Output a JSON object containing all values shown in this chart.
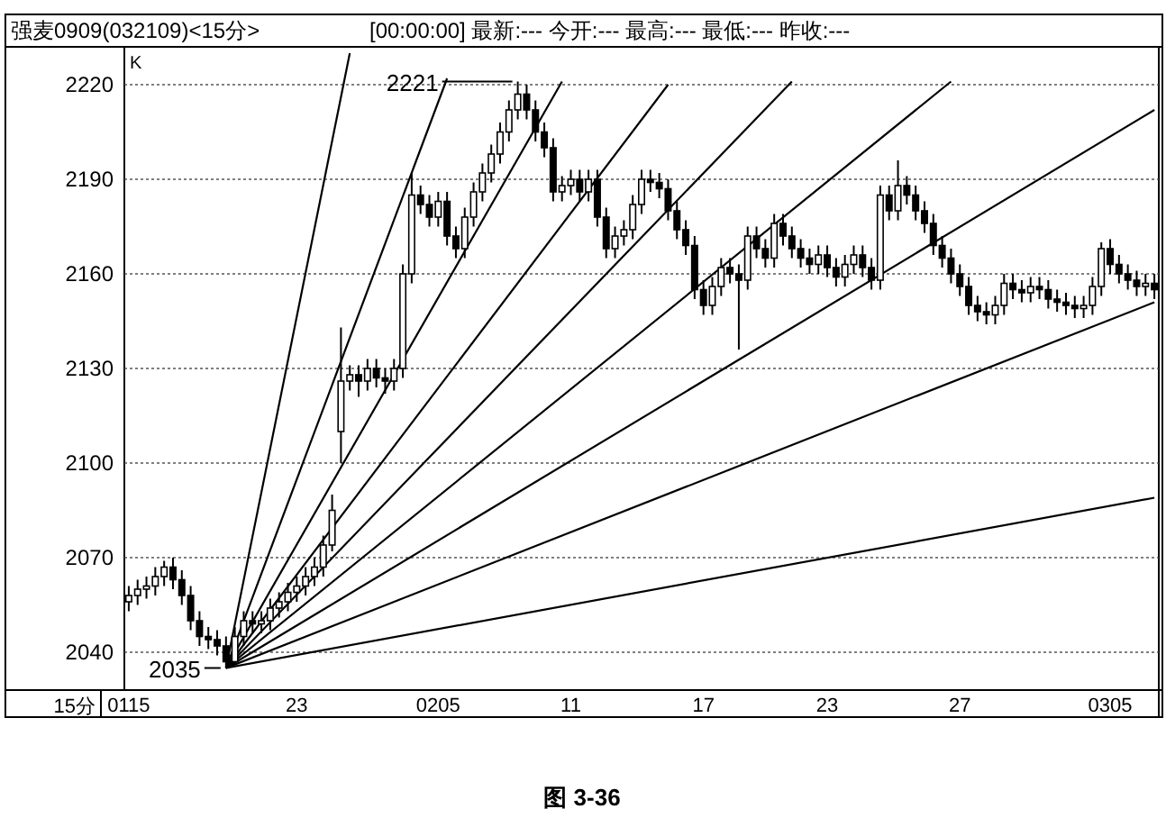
{
  "chart_data": {
    "type": "candlestick",
    "title": "强麦0909(032109)<15分>",
    "subtitle": "[00:00:00] 最新:--- 今开:--- 最高:--- 最低:--- 昨收:---",
    "xlabel": "15分",
    "ylabel": "K",
    "categories": [
      "0115",
      null,
      null,
      null,
      null,
      null,
      null,
      null,
      null,
      null,
      null,
      null,
      null,
      null,
      null,
      null,
      null,
      null,
      null,
      "23",
      null,
      null,
      null,
      null,
      null,
      null,
      null,
      null,
      null,
      null,
      null,
      null,
      null,
      null,
      null,
      "0205",
      null,
      null,
      null,
      null,
      null,
      null,
      null,
      null,
      null,
      null,
      null,
      null,
      null,
      null,
      "11",
      null,
      null,
      null,
      null,
      null,
      null,
      null,
      null,
      null,
      null,
      null,
      null,
      null,
      null,
      "17",
      null,
      null,
      null,
      null,
      null,
      null,
      null,
      null,
      null,
      null,
      null,
      null,
      null,
      "23",
      null,
      null,
      null,
      null,
      null,
      null,
      null,
      null,
      null,
      null,
      null,
      null,
      null,
      null,
      "27",
      null,
      null,
      null,
      null,
      null,
      null,
      null,
      null,
      null,
      null,
      null,
      null,
      null,
      null,
      null,
      null,
      "0305",
      null,
      null,
      null,
      null,
      null
    ],
    "ylim": [
      2028,
      2232
    ],
    "yticks": [
      2040,
      2070,
      2100,
      2130,
      2160,
      2190,
      2220
    ],
    "grid": "y",
    "ohlc": [
      [
        2056,
        2061,
        2053,
        2058
      ],
      [
        2058,
        2063,
        2055,
        2060
      ],
      [
        2060,
        2064,
        2057,
        2061
      ],
      [
        2061,
        2067,
        2058,
        2064
      ],
      [
        2064,
        2069,
        2061,
        2067
      ],
      [
        2067,
        2070,
        2060,
        2063
      ],
      [
        2063,
        2066,
        2055,
        2058
      ],
      [
        2058,
        2061,
        2047,
        2050
      ],
      [
        2050,
        2053,
        2042,
        2045
      ],
      [
        2045,
        2048,
        2041,
        2044
      ],
      [
        2044,
        2047,
        2039,
        2042
      ],
      [
        2042,
        2045,
        2035,
        2037
      ],
      [
        2037,
        2048,
        2036,
        2045
      ],
      [
        2045,
        2053,
        2042,
        2050
      ],
      [
        2050,
        2053,
        2046,
        2049
      ],
      [
        2049,
        2053,
        2046,
        2050
      ],
      [
        2050,
        2057,
        2047,
        2054
      ],
      [
        2054,
        2059,
        2051,
        2056
      ],
      [
        2056,
        2062,
        2053,
        2059
      ],
      [
        2059,
        2064,
        2056,
        2061
      ],
      [
        2061,
        2067,
        2058,
        2064
      ],
      [
        2064,
        2070,
        2061,
        2067
      ],
      [
        2067,
        2077,
        2064,
        2074
      ],
      [
        2074,
        2090,
        2072,
        2085
      ],
      [
        2110,
        2143,
        2100,
        2126
      ],
      [
        2126,
        2131,
        2123,
        2128
      ],
      [
        2128,
        2131,
        2121,
        2126
      ],
      [
        2126,
        2133,
        2123,
        2130
      ],
      [
        2130,
        2133,
        2124,
        2127
      ],
      [
        2127,
        2130,
        2122,
        2126
      ],
      [
        2126,
        2133,
        2123,
        2130
      ],
      [
        2130,
        2163,
        2127,
        2160
      ],
      [
        2160,
        2192,
        2157,
        2185
      ],
      [
        2185,
        2188,
        2179,
        2182
      ],
      [
        2182,
        2185,
        2175,
        2178
      ],
      [
        2178,
        2186,
        2175,
        2183
      ],
      [
        2183,
        2186,
        2169,
        2172
      ],
      [
        2172,
        2175,
        2165,
        2168
      ],
      [
        2168,
        2181,
        2165,
        2178
      ],
      [
        2178,
        2189,
        2175,
        2186
      ],
      [
        2186,
        2195,
        2183,
        2192
      ],
      [
        2192,
        2201,
        2189,
        2198
      ],
      [
        2198,
        2208,
        2195,
        2205
      ],
      [
        2205,
        2215,
        2202,
        2212
      ],
      [
        2212,
        2221,
        2209,
        2217
      ],
      [
        2217,
        2220,
        2209,
        2212
      ],
      [
        2212,
        2215,
        2202,
        2205
      ],
      [
        2205,
        2208,
        2197,
        2200
      ],
      [
        2200,
        2203,
        2183,
        2186
      ],
      [
        2186,
        2191,
        2183,
        2188
      ],
      [
        2188,
        2193,
        2185,
        2190
      ],
      [
        2190,
        2193,
        2183,
        2186
      ],
      [
        2186,
        2193,
        2183,
        2190
      ],
      [
        2190,
        2193,
        2175,
        2178
      ],
      [
        2178,
        2181,
        2165,
        2168
      ],
      [
        2168,
        2175,
        2165,
        2172
      ],
      [
        2172,
        2177,
        2169,
        2174
      ],
      [
        2174,
        2185,
        2171,
        2182
      ],
      [
        2182,
        2193,
        2179,
        2190
      ],
      [
        2190,
        2193,
        2186,
        2189
      ],
      [
        2189,
        2192,
        2184,
        2187
      ],
      [
        2187,
        2190,
        2177,
        2180
      ],
      [
        2180,
        2183,
        2171,
        2174
      ],
      [
        2174,
        2177,
        2166,
        2169
      ],
      [
        2169,
        2172,
        2152,
        2155
      ],
      [
        2155,
        2158,
        2147,
        2150
      ],
      [
        2150,
        2159,
        2147,
        2156
      ],
      [
        2156,
        2165,
        2153,
        2162
      ],
      [
        2162,
        2165,
        2157,
        2160
      ],
      [
        2160,
        2163,
        2136,
        2158
      ],
      [
        2158,
        2175,
        2155,
        2172
      ],
      [
        2172,
        2175,
        2165,
        2168
      ],
      [
        2168,
        2171,
        2162,
        2165
      ],
      [
        2165,
        2179,
        2162,
        2176
      ],
      [
        2176,
        2179,
        2169,
        2172
      ],
      [
        2172,
        2175,
        2165,
        2168
      ],
      [
        2168,
        2171,
        2162,
        2165
      ],
      [
        2165,
        2168,
        2160,
        2163
      ],
      [
        2163,
        2169,
        2160,
        2166
      ],
      [
        2166,
        2169,
        2159,
        2162
      ],
      [
        2162,
        2165,
        2156,
        2159
      ],
      [
        2159,
        2166,
        2156,
        2163
      ],
      [
        2163,
        2169,
        2160,
        2166
      ],
      [
        2166,
        2169,
        2159,
        2162
      ],
      [
        2162,
        2165,
        2155,
        2158
      ],
      [
        2158,
        2188,
        2155,
        2185
      ],
      [
        2185,
        2188,
        2177,
        2180
      ],
      [
        2180,
        2196,
        2177,
        2188
      ],
      [
        2188,
        2191,
        2182,
        2185
      ],
      [
        2185,
        2188,
        2177,
        2180
      ],
      [
        2180,
        2183,
        2173,
        2176
      ],
      [
        2176,
        2179,
        2166,
        2169
      ],
      [
        2169,
        2172,
        2162,
        2165
      ],
      [
        2165,
        2168,
        2157,
        2160
      ],
      [
        2160,
        2163,
        2153,
        2156
      ],
      [
        2156,
        2159,
        2147,
        2150
      ],
      [
        2150,
        2153,
        2145,
        2148
      ],
      [
        2148,
        2151,
        2144,
        2147
      ],
      [
        2147,
        2153,
        2144,
        2150
      ],
      [
        2150,
        2160,
        2147,
        2157
      ],
      [
        2157,
        2160,
        2152,
        2155
      ],
      [
        2155,
        2158,
        2151,
        2154
      ],
      [
        2154,
        2159,
        2151,
        2156
      ],
      [
        2156,
        2159,
        2152,
        2155
      ],
      [
        2155,
        2158,
        2149,
        2152
      ],
      [
        2152,
        2155,
        2148,
        2151
      ],
      [
        2151,
        2154,
        2147,
        2150
      ],
      [
        2150,
        2153,
        2146,
        2149
      ],
      [
        2149,
        2153,
        2146,
        2150
      ],
      [
        2150,
        2159,
        2147,
        2156
      ],
      [
        2156,
        2170,
        2153,
        2168
      ],
      [
        2168,
        2171,
        2160,
        2163
      ],
      [
        2163,
        2166,
        2157,
        2160
      ],
      [
        2160,
        2163,
        2155,
        2158
      ],
      [
        2158,
        2161,
        2153,
        2156
      ],
      [
        2156,
        2160,
        2153,
        2157
      ],
      [
        2157,
        2160,
        2152,
        2155
      ]
    ],
    "series": [
      {
        "type": "line",
        "color": "#000000",
        "values": [
          null,
          null,
          null,
          null,
          null,
          null,
          null,
          null,
          null,
          null,
          null,
          2035,
          null,
          null,
          null,
          null,
          null,
          null,
          null,
          null,
          null,
          null,
          null,
          null,
          null,
          2230,
          null,
          null,
          null,
          null,
          null,
          null,
          null,
          null,
          null,
          null,
          null,
          null,
          null,
          null,
          null,
          null,
          null,
          null,
          null,
          null,
          null,
          null,
          null,
          null,
          null,
          null,
          null,
          null,
          null,
          null,
          null,
          null,
          null,
          null,
          null,
          null,
          null,
          null,
          null,
          null,
          null,
          null,
          null,
          null,
          null,
          null,
          null,
          null,
          null,
          null,
          null,
          null,
          null,
          null,
          null,
          null,
          null,
          null,
          null,
          null,
          null,
          null,
          null,
          null,
          null,
          null,
          null,
          null,
          null,
          null,
          null,
          null,
          null,
          null,
          null,
          null,
          null,
          null,
          null,
          null,
          null,
          null,
          null,
          null,
          null,
          null,
          null,
          null,
          null,
          null,
          null
        ]
      },
      {
        "type": "line",
        "color": "#000000",
        "values": [
          null,
          null,
          null,
          null,
          null,
          null,
          null,
          null,
          null,
          null,
          null,
          2035,
          null,
          null,
          null,
          null,
          null,
          null,
          null,
          null,
          null,
          null,
          null,
          null,
          null,
          null,
          null,
          null,
          null,
          null,
          null,
          null,
          null,
          null,
          null,
          null,
          2222,
          null,
          null,
          null,
          null,
          null,
          null,
          null,
          null,
          null,
          null,
          null,
          null,
          null,
          null,
          null,
          null,
          null,
          null,
          null,
          null,
          null,
          null,
          null,
          null,
          null,
          null,
          null,
          null,
          null,
          null,
          null,
          null,
          null,
          null,
          null,
          null,
          null,
          null,
          null,
          null,
          null,
          null,
          null,
          null,
          null,
          null,
          null,
          null,
          null,
          null,
          null,
          null,
          null,
          null,
          null,
          null,
          null,
          null,
          null,
          null,
          null,
          null,
          null,
          null,
          null,
          null,
          null,
          null,
          null,
          null,
          null,
          null,
          null,
          null,
          null,
          null,
          null,
          null,
          null,
          null
        ]
      },
      {
        "type": "line",
        "color": "#000000",
        "values": [
          null,
          null,
          null,
          null,
          null,
          null,
          null,
          null,
          null,
          null,
          null,
          2035,
          null,
          null,
          null,
          null,
          null,
          null,
          null,
          null,
          null,
          null,
          null,
          null,
          null,
          null,
          null,
          null,
          null,
          null,
          null,
          null,
          null,
          null,
          null,
          null,
          null,
          null,
          null,
          null,
          null,
          null,
          null,
          null,
          null,
          null,
          null,
          null,
          null,
          2221,
          null,
          null,
          null,
          null,
          null,
          null,
          null,
          null,
          null,
          null,
          null,
          null,
          null,
          null,
          null,
          null,
          null,
          null,
          null,
          null,
          null,
          null,
          null,
          null,
          null,
          null,
          null,
          null,
          null,
          null,
          null,
          null,
          null,
          null,
          null,
          null,
          null,
          null,
          null,
          null,
          null,
          null,
          null,
          null,
          null,
          null,
          null,
          null,
          null,
          null,
          null,
          null,
          null,
          null,
          null,
          null,
          null,
          null,
          null,
          null,
          null,
          null,
          null,
          null,
          null,
          null,
          null
        ]
      },
      {
        "type": "line",
        "color": "#000000",
        "values": [
          null,
          null,
          null,
          null,
          null,
          null,
          null,
          null,
          null,
          null,
          null,
          2035,
          null,
          null,
          null,
          null,
          null,
          null,
          null,
          null,
          null,
          null,
          null,
          null,
          null,
          null,
          null,
          null,
          null,
          null,
          null,
          null,
          null,
          null,
          null,
          null,
          null,
          null,
          null,
          null,
          null,
          null,
          null,
          null,
          null,
          null,
          null,
          null,
          null,
          null,
          null,
          null,
          null,
          null,
          null,
          null,
          null,
          null,
          null,
          null,
          null,
          2220,
          null,
          null,
          null,
          null,
          null,
          null,
          null,
          null,
          null,
          null,
          null,
          null,
          null,
          null,
          null,
          null,
          null,
          null,
          null,
          null,
          null,
          null,
          null,
          null,
          null,
          null,
          null,
          null,
          null,
          null,
          null,
          null,
          null,
          null,
          null,
          null,
          null,
          null,
          null,
          null,
          null,
          null,
          null,
          null,
          null,
          null,
          null,
          null,
          null,
          null,
          null,
          null,
          null,
          null,
          null
        ]
      },
      {
        "type": "line",
        "color": "#000000",
        "values": [
          null,
          null,
          null,
          null,
          null,
          null,
          null,
          null,
          null,
          null,
          null,
          2035,
          null,
          null,
          null,
          null,
          null,
          null,
          null,
          null,
          null,
          null,
          null,
          null,
          null,
          null,
          null,
          null,
          null,
          null,
          null,
          null,
          null,
          null,
          null,
          null,
          null,
          null,
          null,
          null,
          null,
          null,
          null,
          null,
          null,
          null,
          null,
          null,
          null,
          null,
          null,
          null,
          null,
          null,
          null,
          null,
          null,
          null,
          null,
          null,
          null,
          null,
          null,
          null,
          null,
          null,
          null,
          null,
          null,
          null,
          null,
          null,
          null,
          null,
          null,
          2221,
          null,
          null,
          null,
          null,
          null,
          null,
          null,
          null,
          null,
          null,
          null,
          null,
          null,
          null,
          null,
          null,
          null,
          null,
          null,
          null,
          null,
          null,
          null,
          null,
          null,
          null,
          null,
          null,
          null,
          null,
          null,
          null,
          null,
          null,
          null,
          null,
          null,
          null,
          null,
          null,
          null
        ]
      },
      {
        "type": "line",
        "color": "#000000",
        "values": [
          null,
          null,
          null,
          null,
          null,
          null,
          null,
          null,
          null,
          null,
          null,
          2035,
          null,
          null,
          null,
          null,
          null,
          null,
          null,
          null,
          null,
          null,
          null,
          null,
          null,
          null,
          null,
          null,
          null,
          null,
          null,
          null,
          null,
          null,
          null,
          null,
          null,
          null,
          null,
          null,
          null,
          null,
          null,
          null,
          null,
          null,
          null,
          null,
          null,
          null,
          null,
          null,
          null,
          null,
          null,
          null,
          null,
          null,
          null,
          null,
          null,
          null,
          null,
          null,
          null,
          null,
          null,
          null,
          null,
          null,
          null,
          null,
          null,
          null,
          null,
          null,
          null,
          null,
          null,
          null,
          null,
          null,
          null,
          null,
          null,
          null,
          null,
          null,
          null,
          null,
          null,
          null,
          null,
          2221,
          null,
          null,
          null,
          null,
          null,
          null,
          null,
          null,
          null,
          null,
          null,
          null,
          null,
          null,
          null,
          null,
          null,
          null,
          null,
          null,
          null,
          null,
          null
        ]
      },
      {
        "type": "line",
        "color": "#000000",
        "values": [
          null,
          null,
          null,
          null,
          null,
          null,
          null,
          null,
          null,
          null,
          null,
          2035,
          null,
          null,
          null,
          null,
          null,
          null,
          null,
          null,
          null,
          null,
          null,
          null,
          null,
          null,
          null,
          null,
          null,
          null,
          null,
          null,
          null,
          null,
          null,
          null,
          null,
          null,
          null,
          null,
          null,
          null,
          null,
          null,
          null,
          null,
          null,
          null,
          null,
          null,
          null,
          null,
          null,
          null,
          null,
          null,
          null,
          null,
          null,
          null,
          null,
          null,
          null,
          null,
          null,
          null,
          null,
          null,
          null,
          null,
          null,
          null,
          null,
          null,
          null,
          null,
          null,
          null,
          null,
          null,
          null,
          null,
          null,
          null,
          null,
          null,
          null,
          null,
          null,
          null,
          null,
          null,
          null,
          null,
          null,
          null,
          null,
          null,
          null,
          null,
          null,
          null,
          null,
          null,
          null,
          null,
          null,
          null,
          null,
          null,
          null,
          null,
          null,
          null,
          null,
          null,
          2212
        ]
      },
      {
        "type": "line",
        "color": "#000000",
        "values": [
          null,
          null,
          null,
          null,
          null,
          null,
          null,
          null,
          null,
          null,
          null,
          2035,
          null,
          null,
          null,
          null,
          null,
          null,
          null,
          null,
          null,
          null,
          null,
          null,
          null,
          null,
          null,
          null,
          null,
          null,
          null,
          null,
          null,
          null,
          null,
          null,
          null,
          null,
          null,
          null,
          null,
          null,
          null,
          null,
          null,
          null,
          null,
          null,
          null,
          null,
          null,
          null,
          null,
          null,
          null,
          null,
          null,
          null,
          null,
          null,
          null,
          null,
          null,
          null,
          null,
          null,
          null,
          null,
          null,
          null,
          null,
          null,
          null,
          null,
          null,
          null,
          null,
          null,
          null,
          null,
          null,
          null,
          null,
          null,
          null,
          null,
          null,
          null,
          null,
          null,
          null,
          null,
          null,
          null,
          null,
          null,
          null,
          null,
          null,
          null,
          null,
          null,
          null,
          null,
          null,
          null,
          null,
          null,
          null,
          null,
          null,
          null,
          null,
          null,
          null,
          null,
          2151
        ]
      },
      {
        "type": "line",
        "color": "#000000",
        "values": [
          null,
          null,
          null,
          null,
          null,
          null,
          null,
          null,
          null,
          null,
          null,
          2035,
          null,
          null,
          null,
          null,
          null,
          null,
          null,
          null,
          null,
          null,
          null,
          null,
          null,
          null,
          null,
          null,
          null,
          null,
          null,
          null,
          null,
          null,
          null,
          null,
          null,
          null,
          null,
          null,
          null,
          null,
          null,
          null,
          null,
          null,
          null,
          null,
          null,
          null,
          null,
          null,
          null,
          null,
          null,
          null,
          null,
          null,
          null,
          null,
          null,
          null,
          null,
          null,
          null,
          null,
          null,
          null,
          null,
          null,
          null,
          null,
          null,
          null,
          null,
          null,
          null,
          null,
          null,
          null,
          null,
          null,
          null,
          null,
          null,
          null,
          null,
          null,
          null,
          null,
          null,
          null,
          null,
          null,
          null,
          null,
          null,
          null,
          null,
          null,
          null,
          null,
          null,
          null,
          null,
          null,
          null,
          null,
          null,
          null,
          null,
          null,
          null,
          null,
          null,
          null,
          2089
        ]
      }
    ],
    "annotations": [
      "2221",
      "2035",
      "图 3-36"
    ]
  }
}
